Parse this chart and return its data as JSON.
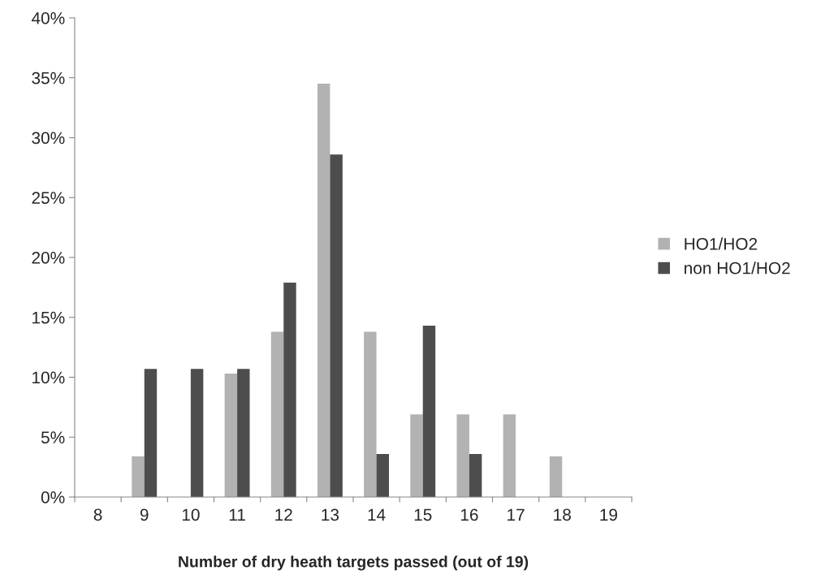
{
  "chart_data": {
    "type": "bar",
    "xlabel": "Number of dry heath targets passed (out of 19)",
    "categories": [
      "8",
      "9",
      "10",
      "11",
      "12",
      "13",
      "14",
      "15",
      "16",
      "17",
      "18",
      "19"
    ],
    "series": [
      {
        "name": "HO1/HO2",
        "color": "#b2b2b2",
        "values": [
          0,
          3.4,
          0,
          10.3,
          13.8,
          34.5,
          13.8,
          6.9,
          6.9,
          6.9,
          3.4,
          0
        ]
      },
      {
        "name": "non HO1/HO2",
        "color": "#4d4d4d",
        "values": [
          0,
          10.7,
          10.7,
          10.7,
          17.9,
          28.6,
          3.6,
          14.3,
          3.6,
          0,
          0,
          0
        ]
      }
    ],
    "ylim": [
      0,
      40
    ],
    "yticks": [
      {
        "value": 0,
        "label": "0%"
      },
      {
        "value": 5,
        "label": "5%"
      },
      {
        "value": 10,
        "label": "10%"
      },
      {
        "value": 15,
        "label": "15%"
      },
      {
        "value": 20,
        "label": "20%"
      },
      {
        "value": 25,
        "label": "25%"
      },
      {
        "value": 30,
        "label": "30%"
      },
      {
        "value": 35,
        "label": "35%"
      },
      {
        "value": 40,
        "label": "40%"
      }
    ],
    "grid": false,
    "legend": "right"
  }
}
